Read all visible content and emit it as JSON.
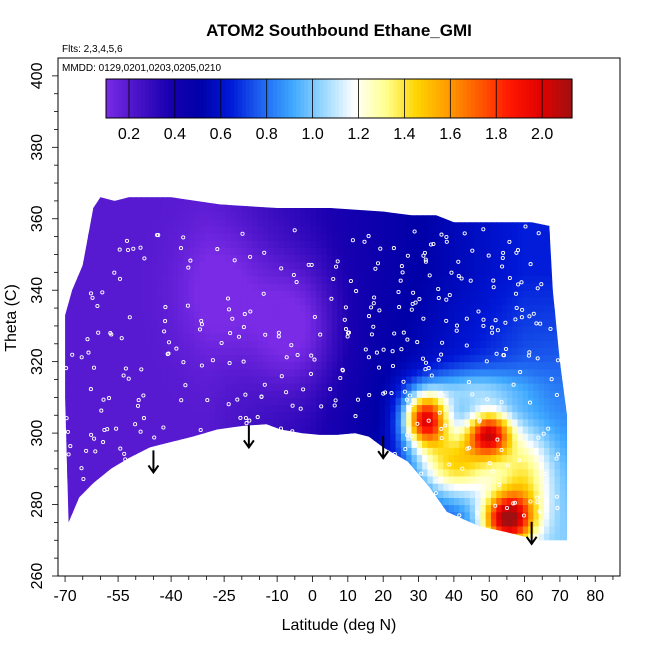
{
  "chart_data": {
    "type": "heatmap",
    "title": "ATOM2 Southbound Ethane_GMI",
    "flights_note": "Flts: 2,3,4,5,6",
    "dates_note": "MMDD: 0129,0201,0203,0205,0210",
    "xlabel": "Latitude (deg N)",
    "ylabel": "Theta (C)",
    "xlim": [
      -72,
      87
    ],
    "ylim": [
      260,
      405
    ],
    "x_ticks": [
      -70,
      -55,
      -40,
      -25,
      -10,
      0,
      10,
      20,
      30,
      40,
      50,
      60,
      70,
      80
    ],
    "y_ticks": [
      260,
      280,
      300,
      320,
      340,
      360,
      380,
      400
    ],
    "colorbar": {
      "ticks": [
        0.2,
        0.4,
        0.6,
        0.8,
        1.0,
        1.2,
        1.4,
        1.6,
        1.8,
        2.0
      ],
      "tick_labels": [
        "0.2",
        "0.4",
        "0.6",
        "0.8",
        "1.0",
        "1.2",
        "1.4",
        "1.6",
        "1.8",
        "2.0"
      ],
      "range": [
        0.1,
        2.13
      ],
      "colors": [
        "#7a2be6",
        "#4a14c8",
        "#1a00b0",
        "#0000a8",
        "#0018d8",
        "#1e64f0",
        "#3ea8ff",
        "#9ad8ff",
        "#ffffff",
        "#ffff90",
        "#ffd400",
        "#ff9c00",
        "#ff5a00",
        "#ff1800",
        "#e00000",
        "#a01010"
      ]
    },
    "arrow_latitudes": [
      -45,
      -18,
      20,
      62
    ],
    "arrow_theta": [
      289,
      296,
      293,
      269
    ]
  }
}
